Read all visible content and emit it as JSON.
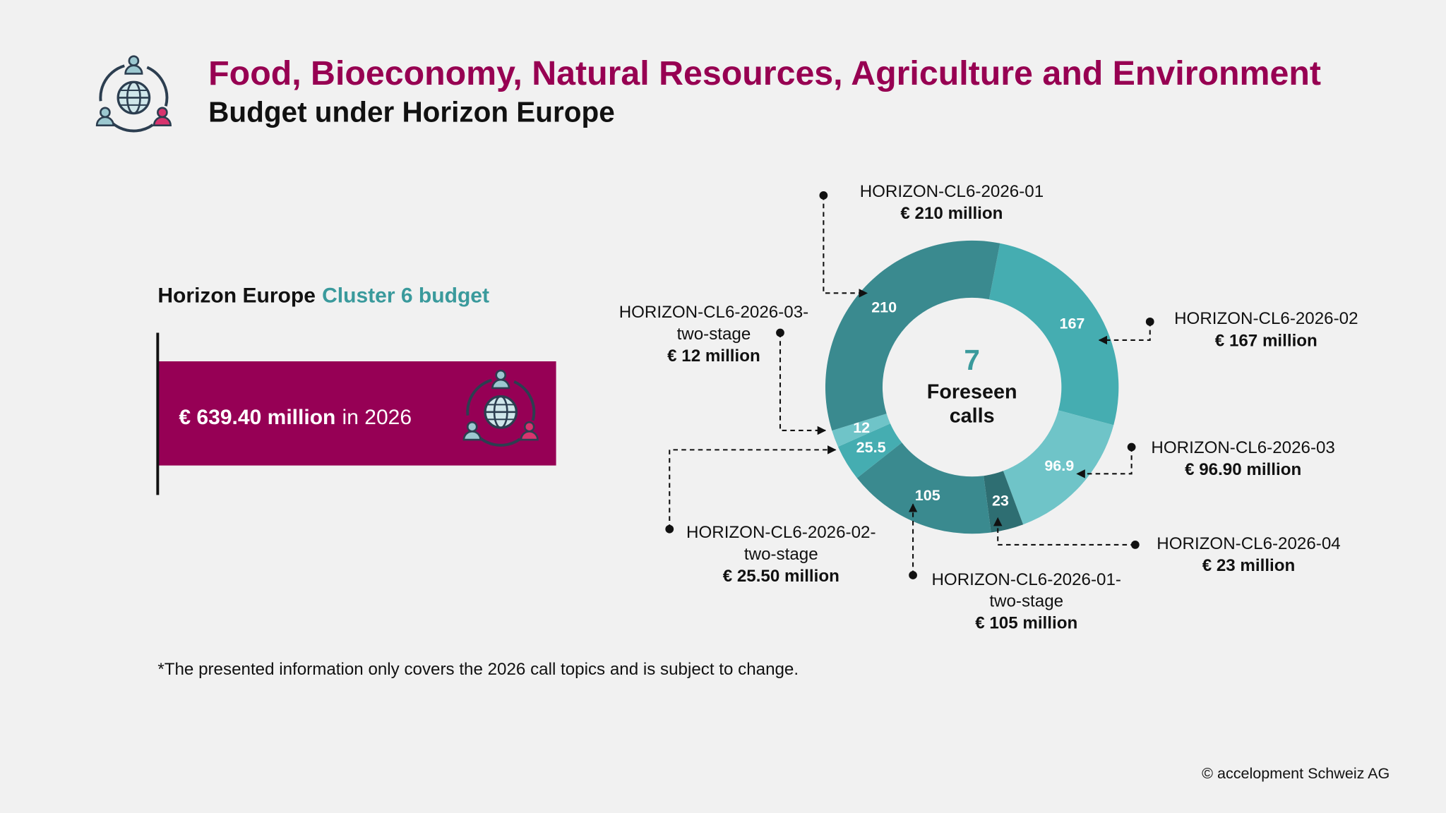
{
  "header": {
    "title": "Food, Bioeconomy, Natural Resources, Agriculture and Environment",
    "subtitle": "Budget under Horizon Europe"
  },
  "budget": {
    "heading": "Horizon Europe",
    "heading_highlight": "Cluster 6 budget",
    "amount": "€ 639.40 million",
    "period": "in 2026"
  },
  "chart_data": {
    "type": "donut",
    "categories": [
      "HORIZON-CL6-2026-02",
      "HORIZON-CL6-2026-03",
      "HORIZON-CL6-2026-04",
      "HORIZON-CL6-2026-01-two-stage",
      "HORIZON-CL6-2026-02-two-stage",
      "HORIZON-CL6-2026-03-two-stage",
      "HORIZON-CL6-2026-01"
    ],
    "values": [
      167,
      96.9,
      23,
      105,
      25.5,
      12,
      210
    ],
    "value_labels": [
      "€ 167 million",
      "€ 96.90 million",
      "€ 23 million",
      "€ 105 million",
      "€ 25.50 million",
      "€ 12 million",
      "€ 210 million"
    ],
    "colors": [
      "#45adb1",
      "#6fc4c8",
      "#2e6e72",
      "#3a8a8f",
      "#45adb1",
      "#6fc4c8",
      "#3a8a8f"
    ],
    "center_value": 7,
    "center_label": "Foreseen calls"
  },
  "footnote": "*The presented information only covers the 2026 call topics and is subject to change.",
  "copyright": "© accelopment Schweiz AG"
}
